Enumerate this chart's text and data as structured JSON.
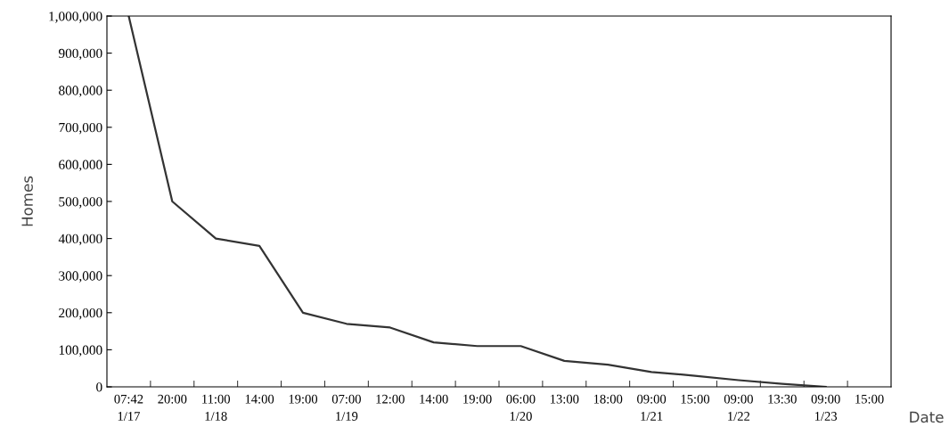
{
  "chart_data": {
    "type": "line",
    "xlabel": "Date",
    "ylabel": "Homes",
    "categories": [
      "07:42\n1/17",
      "20:00",
      "11:00\n1/18",
      "14:00",
      "19:00",
      "07:00\n1/19",
      "12:00",
      "14:00",
      "19:00",
      "06:00\n1/20",
      "13:00",
      "18:00",
      "09:00\n1/21",
      "15:00",
      "09:00\n1/22",
      "13:30",
      "09:00\n1/23",
      "15:00"
    ],
    "series": [
      {
        "color": "#333333",
        "values": [
          1000000,
          500000,
          400000,
          380000,
          200000,
          170000,
          160000,
          120000,
          110000,
          110000,
          70000,
          60000,
          40000,
          30000,
          18000,
          8000,
          0,
          null
        ]
      }
    ],
    "ylim": [
      0,
      1000000
    ],
    "yticks": [
      {
        "value": 0,
        "label": "0"
      },
      {
        "value": 100000,
        "label": "100,000"
      },
      {
        "value": 200000,
        "label": "200,000"
      },
      {
        "value": 300000,
        "label": "300,000"
      },
      {
        "value": 400000,
        "label": "400,000"
      },
      {
        "value": 500000,
        "label": "500,000"
      },
      {
        "value": 600000,
        "label": "600,000"
      },
      {
        "value": 700000,
        "label": "700,000"
      },
      {
        "value": 800000,
        "label": "800,000"
      },
      {
        "value": 900000,
        "label": "900,000"
      },
      {
        "value": 1000000,
        "label": "1,000,000"
      }
    ],
    "grid": false,
    "marker": "none",
    "line_style": "solid"
  }
}
